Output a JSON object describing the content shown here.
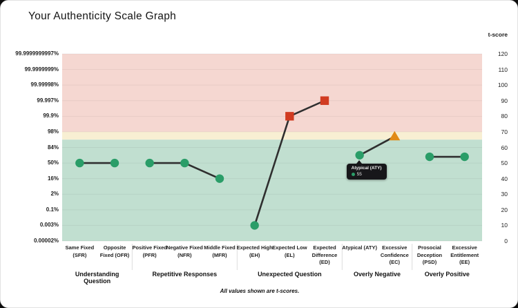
{
  "header": {
    "title": "Your Authenticity Scale Graph"
  },
  "right_axis_header": "t-score",
  "footnote": "All values shown are t-scores.",
  "chart_data": {
    "type": "line",
    "title": "Your Authenticity Scale Graph",
    "ylabel_right": "t-score",
    "ylim": [
      0,
      120
    ],
    "grid": true,
    "y_ticks_right": [
      0,
      10,
      20,
      30,
      40,
      50,
      60,
      70,
      80,
      90,
      100,
      110,
      120
    ],
    "y_ticks_left_percentiles": [
      "0.00002%",
      "0.003%",
      "0.1%",
      "2%",
      "16%",
      "50%",
      "84%",
      "98%",
      "99.9%",
      "99.997%",
      "99.99998%",
      "99.9999999%",
      "99.9999999997%"
    ],
    "bands": [
      {
        "name": "elevated-zone",
        "from": 70,
        "to": 120,
        "color": "#f5d7d1"
      },
      {
        "name": "caution-zone",
        "from": 65,
        "to": 70,
        "color": "#f8efd3"
      },
      {
        "name": "typical-zone",
        "from": 0,
        "to": 65,
        "color": "#c1dfd0"
      }
    ],
    "line_color": "#2f2f2f",
    "gridline_color": "rgba(0,0,0,0.055)",
    "marker_styles": {
      "circle": {
        "color": "#2a9d68"
      },
      "square": {
        "color": "#d13b21"
      },
      "triangle": {
        "color": "#e18a17"
      }
    },
    "groups": [
      {
        "label": "Understanding Question",
        "points": [
          {
            "code": "SFR",
            "label": "Same Fixed (SFR)",
            "value": 50,
            "marker": "circle"
          },
          {
            "code": "OFR",
            "label": "Opposite Fixed (OFR)",
            "value": 50,
            "marker": "circle"
          }
        ]
      },
      {
        "label": "Repetitive Responses",
        "points": [
          {
            "code": "PFR",
            "label": "Positive Fixed (PFR)",
            "value": 50,
            "marker": "circle"
          },
          {
            "code": "NFR",
            "label": "Negative Fixed (NFR)",
            "value": 50,
            "marker": "circle"
          },
          {
            "code": "MFR",
            "label": "Middle Fixed (MFR)",
            "value": 40,
            "marker": "circle"
          }
        ]
      },
      {
        "label": "Unexpected Question",
        "points": [
          {
            "code": "EH",
            "label": "Expected High (EH)",
            "value": 10,
            "marker": "circle"
          },
          {
            "code": "EL",
            "label": "Expected Low (EL)",
            "value": 80,
            "marker": "square"
          },
          {
            "code": "ED",
            "label": "Expected Difference (ED)",
            "value": 90,
            "marker": "square"
          }
        ]
      },
      {
        "label": "Overly Negative",
        "points": [
          {
            "code": "ATY",
            "label": "Atypical (ATY)",
            "value": 55,
            "marker": "circle"
          },
          {
            "code": "EC",
            "label": "Excessive Confidence (EC)",
            "value": 67,
            "marker": "triangle"
          }
        ]
      },
      {
        "label": "Overly Positive",
        "points": [
          {
            "code": "PSD",
            "label": "Prosocial Deception (PSD)",
            "value": 54,
            "marker": "circle"
          },
          {
            "code": "EE",
            "label": "Excessive Entitlement (EE)",
            "value": 54,
            "marker": "circle"
          }
        ]
      }
    ],
    "tooltip": {
      "target": "ATY",
      "label": "Atypical (ATY)",
      "value": "55",
      "dot_color": "#2a9d68"
    }
  }
}
